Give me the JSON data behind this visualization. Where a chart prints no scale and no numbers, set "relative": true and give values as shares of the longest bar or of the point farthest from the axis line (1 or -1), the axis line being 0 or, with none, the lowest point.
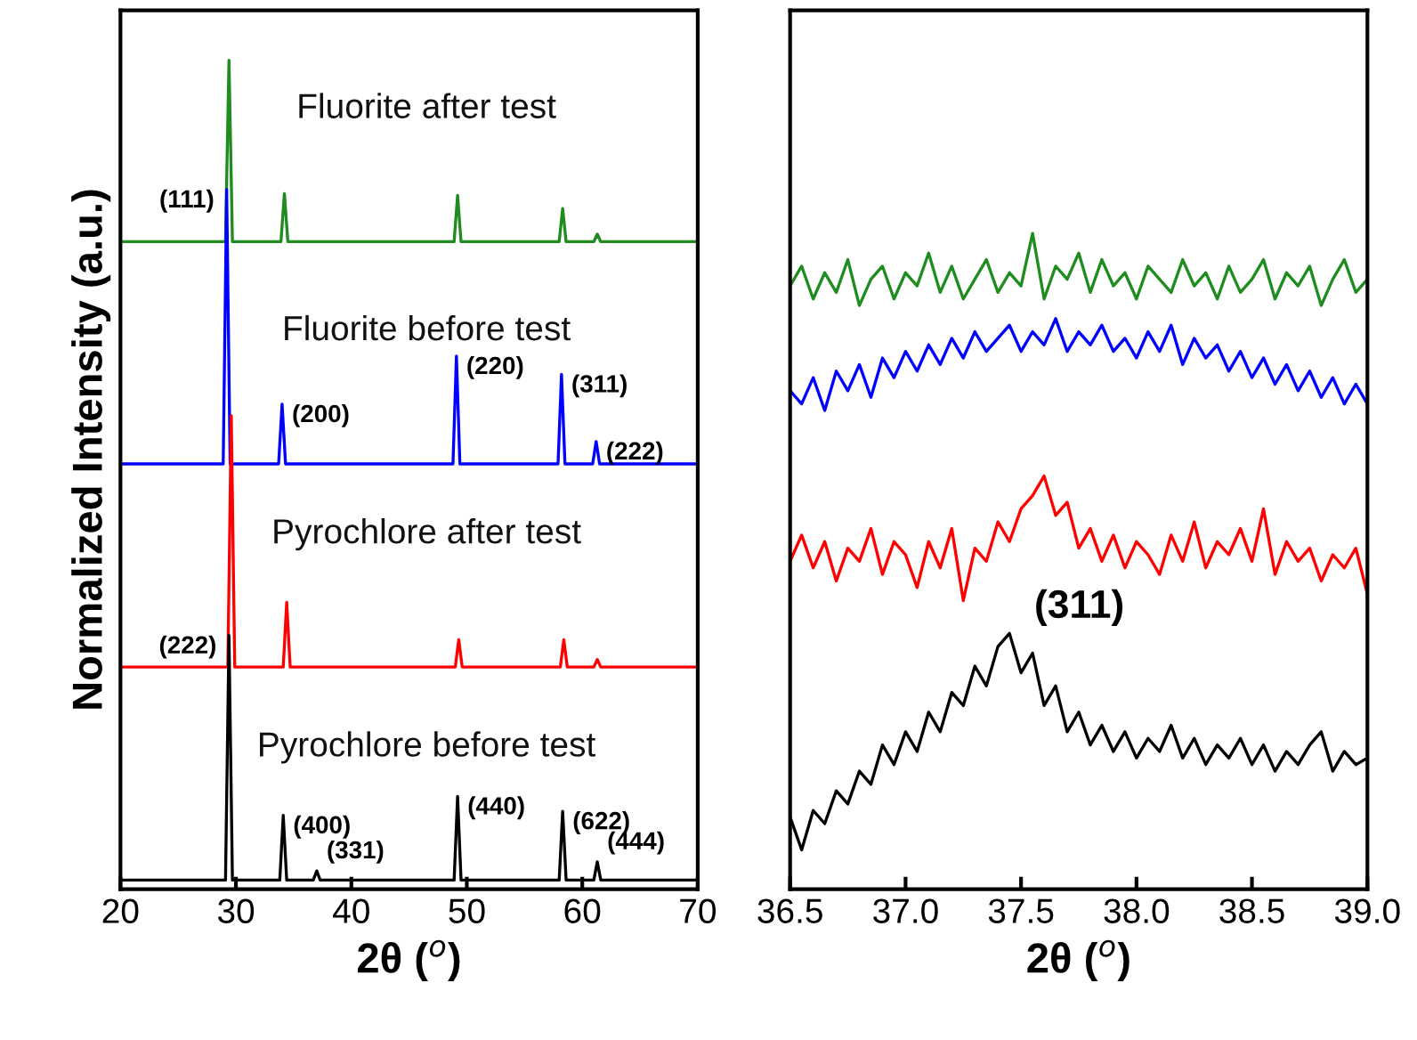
{
  "chart_data": [
    {
      "type": "line",
      "relative": true,
      "xlabel": "2θ ($^{o}$)",
      "ylabel": "Normalized Intensity (a.u.)",
      "xlim": [
        20,
        70
      ],
      "xticks": [
        20,
        30,
        40,
        50,
        60,
        70
      ],
      "tick_labels": "x",
      "legend": false,
      "grid": false,
      "series": [
        {
          "name": "Fluorite after test",
          "color": "#1e8c1e",
          "x": [
            20,
            29.1,
            29.4,
            29.7,
            33.9,
            34.2,
            34.5,
            48.9,
            49.2,
            49.5,
            58.0,
            58.3,
            58.6,
            61.0,
            61.3,
            61.6,
            70
          ],
          "values": [
            0.781,
            0.781,
            1.0,
            0.781,
            0.781,
            0.839,
            0.781,
            0.781,
            0.837,
            0.781,
            0.781,
            0.821,
            0.781,
            0.781,
            0.79,
            0.781,
            0.781
          ]
        },
        {
          "name": "Fluorite before test",
          "color": "#0000ff",
          "x": [
            20,
            28.9,
            29.2,
            29.5,
            33.7,
            34.0,
            34.3,
            48.8,
            49.1,
            49.4,
            57.9,
            58.2,
            58.5,
            60.9,
            61.2,
            61.5,
            70
          ],
          "values": [
            0.513,
            0.513,
            0.844,
            0.513,
            0.513,
            0.585,
            0.513,
            0.513,
            0.643,
            0.513,
            0.513,
            0.621,
            0.513,
            0.513,
            0.54,
            0.513,
            0.513
          ]
        },
        {
          "name": "Pyrochlore after test",
          "color": "#ff0000",
          "x": [
            20,
            29.3,
            29.6,
            29.9,
            34.1,
            34.4,
            34.7,
            49.0,
            49.3,
            49.6,
            58.1,
            58.4,
            58.7,
            61.0,
            61.3,
            61.6,
            70
          ],
          "values": [
            0.268,
            0.268,
            0.571,
            0.268,
            0.268,
            0.346,
            0.268,
            0.268,
            0.301,
            0.268,
            0.268,
            0.301,
            0.268,
            0.268,
            0.277,
            0.268,
            0.268
          ]
        },
        {
          "name": "Pyrochlore before test",
          "color": "#000000",
          "x": [
            20,
            29.1,
            29.4,
            29.7,
            33.8,
            34.1,
            34.4,
            36.7,
            37.0,
            37.3,
            48.9,
            49.2,
            49.5,
            58.0,
            58.3,
            58.6,
            61.0,
            61.3,
            61.6,
            70
          ],
          "values": [
            0.011,
            0.011,
            0.306,
            0.011,
            0.011,
            0.089,
            0.011,
            0.011,
            0.022,
            0.011,
            0.011,
            0.112,
            0.011,
            0.011,
            0.094,
            0.011,
            0.011,
            0.033,
            0.011,
            0.011
          ]
        }
      ],
      "annotations": [
        {
          "text": "(111)",
          "x": 29.2,
          "y": 0.844
        },
        {
          "text": "(200)",
          "x": 34.0,
          "y": 0.585
        },
        {
          "text": "(220)",
          "x": 49.1,
          "y": 0.643
        },
        {
          "text": "(311)",
          "x": 58.2,
          "y": 0.621
        },
        {
          "text": "(222)",
          "x": 61.2,
          "y": 0.54
        },
        {
          "text": "(222)",
          "x": 29.4,
          "y": 0.306
        },
        {
          "text": "(400)",
          "x": 34.1,
          "y": 0.089
        },
        {
          "text": "(331)",
          "x": 37.0,
          "y": 0.022
        },
        {
          "text": "(440)",
          "x": 49.2,
          "y": 0.112
        },
        {
          "text": "(622)",
          "x": 58.3,
          "y": 0.094
        },
        {
          "text": "(444)",
          "x": 61.3,
          "y": 0.033
        }
      ]
    },
    {
      "type": "line",
      "relative": true,
      "xlabel": "2θ ($^{o}$)",
      "xlim": [
        36.5,
        39.0
      ],
      "xticks": [
        {
          "value": 36.5,
          "label": "36.5"
        },
        {
          "value": 37,
          "label": "37.0"
        },
        {
          "value": 37.5,
          "label": "37.5"
        },
        {
          "value": 38,
          "label": "38.0"
        },
        {
          "value": 38.5,
          "label": "38.5"
        },
        {
          "value": 39,
          "label": "39.0"
        }
      ],
      "tick_labels": "x",
      "legend": false,
      "grid": false,
      "series": [
        {
          "color": "#1e8c1e",
          "values": [
            0.92,
            0.95,
            0.9,
            0.94,
            0.91,
            0.96,
            0.89,
            0.93,
            0.95,
            0.9,
            0.94,
            0.92,
            0.97,
            0.91,
            0.95,
            0.9,
            0.93,
            0.96,
            0.91,
            0.94,
            0.92,
            1.0,
            0.9,
            0.95,
            0.93,
            0.97,
            0.91,
            0.96,
            0.92,
            0.94,
            0.9,
            0.95,
            0.93,
            0.91,
            0.96,
            0.92,
            0.94,
            0.9,
            0.95,
            0.91,
            0.93,
            0.96,
            0.9,
            0.94,
            0.92,
            0.95,
            0.89,
            0.93,
            0.96,
            0.91,
            0.93
          ]
        },
        {
          "color": "#0000ff",
          "values": [
            0.76,
            0.74,
            0.78,
            0.73,
            0.79,
            0.76,
            0.8,
            0.75,
            0.81,
            0.78,
            0.82,
            0.79,
            0.83,
            0.8,
            0.84,
            0.81,
            0.85,
            0.82,
            0.84,
            0.86,
            0.82,
            0.85,
            0.83,
            0.87,
            0.82,
            0.85,
            0.83,
            0.86,
            0.82,
            0.84,
            0.81,
            0.85,
            0.82,
            0.86,
            0.8,
            0.84,
            0.81,
            0.83,
            0.79,
            0.82,
            0.78,
            0.81,
            0.77,
            0.8,
            0.76,
            0.79,
            0.75,
            0.78,
            0.74,
            0.77,
            0.74
          ]
        },
        {
          "color": "#ff0000",
          "values": [
            0.5,
            0.54,
            0.49,
            0.53,
            0.47,
            0.52,
            0.5,
            0.55,
            0.48,
            0.53,
            0.51,
            0.46,
            0.53,
            0.49,
            0.55,
            0.44,
            0.52,
            0.5,
            0.56,
            0.53,
            0.58,
            0.6,
            0.63,
            0.57,
            0.59,
            0.52,
            0.55,
            0.5,
            0.54,
            0.49,
            0.53,
            0.51,
            0.48,
            0.54,
            0.5,
            0.56,
            0.49,
            0.53,
            0.51,
            0.55,
            0.5,
            0.58,
            0.48,
            0.53,
            0.5,
            0.52,
            0.47,
            0.51,
            0.49,
            0.52,
            0.45
          ]
        },
        {
          "color": "#000000",
          "values": [
            0.11,
            0.06,
            0.12,
            0.1,
            0.15,
            0.13,
            0.18,
            0.16,
            0.22,
            0.19,
            0.24,
            0.21,
            0.27,
            0.24,
            0.3,
            0.28,
            0.34,
            0.31,
            0.37,
            0.39,
            0.33,
            0.36,
            0.28,
            0.31,
            0.24,
            0.27,
            0.22,
            0.25,
            0.21,
            0.24,
            0.2,
            0.23,
            0.21,
            0.25,
            0.2,
            0.23,
            0.19,
            0.22,
            0.2,
            0.23,
            0.19,
            0.22,
            0.18,
            0.21,
            0.19,
            0.22,
            0.24,
            0.18,
            0.21,
            0.19,
            0.2
          ]
        }
      ],
      "x": [
        36.5,
        36.55,
        36.6,
        36.65,
        36.7,
        36.75,
        36.8,
        36.85,
        36.9,
        36.95,
        37.0,
        37.05,
        37.1,
        37.15,
        37.2,
        37.25,
        37.3,
        37.35,
        37.4,
        37.45,
        37.5,
        37.55,
        37.6,
        37.65,
        37.7,
        37.75,
        37.8,
        37.85,
        37.9,
        37.95,
        38.0,
        38.05,
        38.1,
        38.15,
        38.2,
        38.25,
        38.3,
        38.35,
        38.4,
        38.45,
        38.5,
        38.55,
        38.6,
        38.65,
        38.7,
        38.75,
        38.8,
        38.85,
        38.9,
        38.95,
        39.0
      ],
      "annotations": [
        {
          "text": "(311)",
          "x": 37.45,
          "y": 0.39
        }
      ]
    }
  ]
}
